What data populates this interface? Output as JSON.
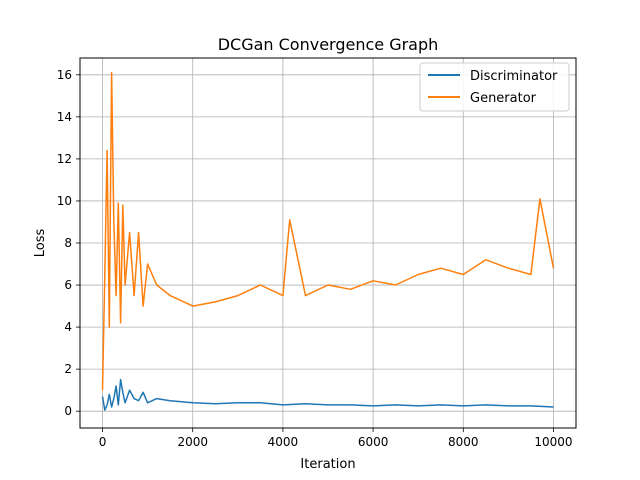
{
  "chart_data": {
    "type": "line",
    "title": "DCGan Convergence Graph",
    "xlabel": "Iteration",
    "ylabel": "Loss",
    "xlim": [
      -500,
      10500
    ],
    "ylim": [
      -0.8,
      16.8
    ],
    "xticks": [
      0,
      2000,
      4000,
      6000,
      8000,
      10000
    ],
    "yticks": [
      0,
      2,
      4,
      6,
      8,
      10,
      12,
      14,
      16
    ],
    "grid": true,
    "legend_position": "top-right",
    "series": [
      {
        "name": "Discriminator",
        "color": "#1f77b4",
        "x": [
          0,
          50,
          100,
          150,
          200,
          250,
          300,
          350,
          400,
          450,
          500,
          600,
          700,
          800,
          900,
          1000,
          1200,
          1500,
          2000,
          2500,
          3000,
          3500,
          4000,
          4500,
          5000,
          5500,
          6000,
          6500,
          7000,
          7500,
          8000,
          8500,
          9000,
          9500,
          10000
        ],
        "values": [
          0.7,
          0.05,
          0.3,
          0.8,
          0.2,
          0.6,
          1.2,
          0.3,
          1.5,
          0.9,
          0.4,
          1.0,
          0.6,
          0.5,
          0.9,
          0.4,
          0.6,
          0.5,
          0.4,
          0.35,
          0.4,
          0.4,
          0.3,
          0.35,
          0.3,
          0.3,
          0.25,
          0.3,
          0.25,
          0.3,
          0.25,
          0.3,
          0.25,
          0.25,
          0.2
        ]
      },
      {
        "name": "Generator",
        "color": "#ff7f0e",
        "x": [
          0,
          50,
          100,
          150,
          200,
          250,
          300,
          350,
          400,
          450,
          500,
          600,
          700,
          800,
          900,
          1000,
          1200,
          1500,
          2000,
          2500,
          3000,
          3500,
          4000,
          4150,
          4500,
          5000,
          5500,
          6000,
          6500,
          7000,
          7500,
          8000,
          8500,
          9000,
          9500,
          9700,
          10000
        ],
        "values": [
          1.0,
          6.5,
          12.4,
          4.0,
          16.1,
          9.0,
          5.5,
          9.9,
          4.2,
          9.8,
          6.0,
          8.5,
          5.5,
          8.5,
          5.0,
          7.0,
          6.0,
          5.5,
          5.0,
          5.2,
          5.5,
          6.0,
          5.5,
          9.1,
          5.5,
          6.0,
          5.8,
          6.2,
          6.0,
          6.5,
          6.8,
          6.5,
          7.2,
          6.8,
          6.5,
          10.1,
          6.8
        ]
      }
    ]
  }
}
